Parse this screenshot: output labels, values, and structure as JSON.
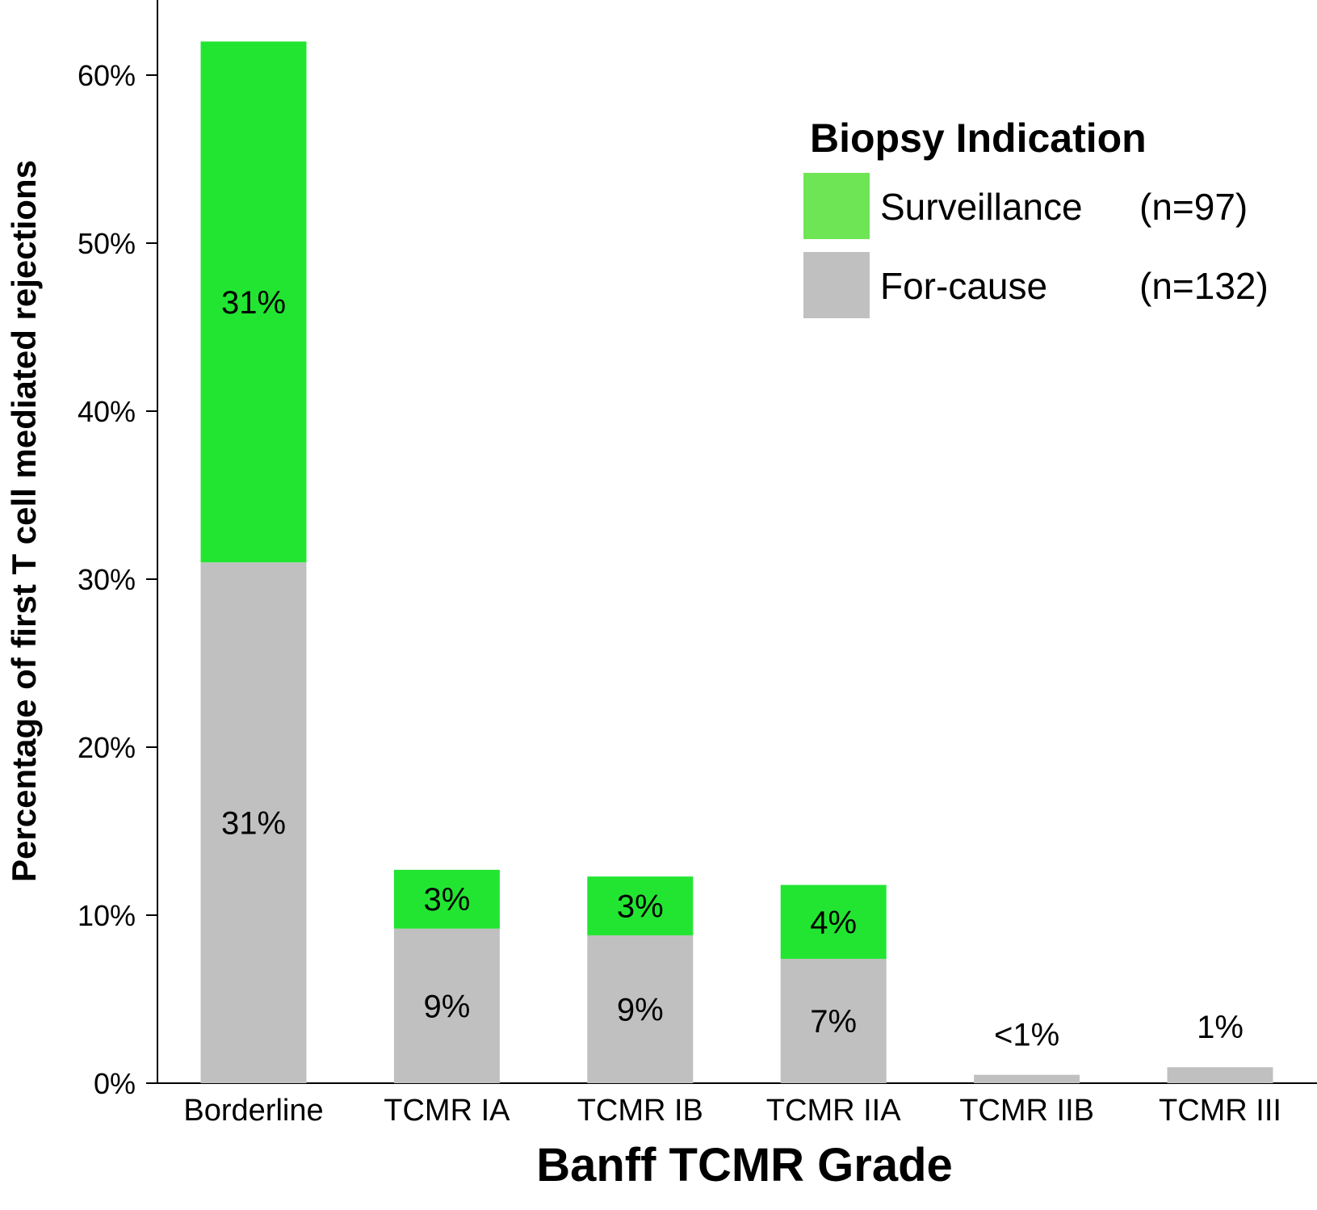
{
  "chart_data": {
    "type": "bar",
    "stacked": true,
    "xlabel": "Banff TCMR Grade",
    "ylabel": "Percentage of first T cell mediated rejections",
    "ylim": [
      0,
      65
    ],
    "yticks": [
      0,
      10,
      20,
      30,
      40,
      50,
      60
    ],
    "ytick_labels": [
      "0%",
      "10%",
      "20%",
      "30%",
      "40%",
      "50%",
      "60%"
    ],
    "categories": [
      "Borderline",
      "TCMR IA",
      "TCMR IB",
      "TCMR IIA",
      "TCMR IIB",
      "TCMR III"
    ],
    "series": [
      {
        "name": "For-cause",
        "color": "#c0c0c0",
        "values": [
          31,
          9.2,
          8.8,
          7.4,
          0.5,
          0.95
        ],
        "labels": [
          "31%",
          "9%",
          "9%",
          "7%",
          "<1%",
          "1%"
        ]
      },
      {
        "name": "Surveillance",
        "color": "#22e532",
        "values": [
          31,
          3.5,
          3.5,
          4.4,
          0,
          0
        ],
        "labels": [
          "31%",
          "3%",
          "3%",
          "4%",
          "",
          ""
        ]
      }
    ],
    "legend": {
      "title": "Biopsy Indication",
      "placement": "top-right",
      "items": [
        {
          "label": "Surveillance",
          "n": "(n=97)",
          "color": "#6ee554"
        },
        {
          "label": "For-cause",
          "n": "(n=132)",
          "color": "#c0c0c0"
        }
      ]
    },
    "grid": false
  }
}
